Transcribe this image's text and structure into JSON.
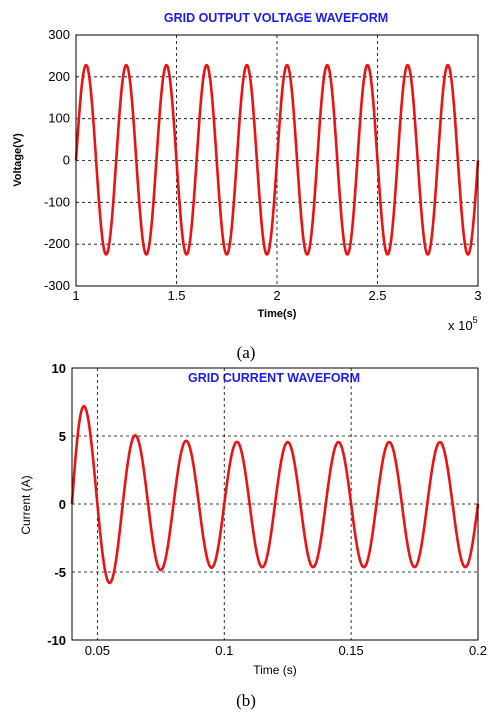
{
  "chart_data": [
    {
      "type": "line",
      "title": "GRID OUTPUT VOLTAGE WAVEFORM",
      "xlabel": "Time(s)",
      "ylabel": "Voltage(V)",
      "x_multiplier": "x 10",
      "x_multiplier_exp": "5",
      "xlim": [
        1,
        3
      ],
      "ylim": [
        -300,
        300
      ],
      "xticks": [
        "1",
        "1.5",
        "2",
        "2.5",
        "3"
      ],
      "yticks": [
        "300",
        "200",
        "100",
        "0",
        "-100",
        "-200",
        "-300"
      ],
      "grid": true,
      "caption": "(a)",
      "color": "#ee1111",
      "series": [
        {
          "x": [
            1.0,
            1.05,
            1.1,
            1.15,
            1.2,
            1.25,
            1.3,
            1.35,
            1.4,
            1.45,
            1.5,
            1.55,
            1.6,
            1.65,
            1.7,
            1.75,
            1.8,
            1.85,
            1.9,
            1.95,
            2.0,
            2.05,
            2.1,
            2.15,
            2.2,
            2.25,
            2.3,
            2.35,
            2.4,
            2.45,
            2.5,
            2.55,
            2.6,
            2.65,
            2.7,
            2.75,
            2.8,
            2.85,
            2.9,
            2.95,
            3.0
          ],
          "y": [
            0,
            230,
            0,
            -225,
            0,
            230,
            0,
            -225,
            0,
            230,
            0,
            -225,
            0,
            230,
            0,
            -225,
            0,
            230,
            0,
            -225,
            0,
            230,
            0,
            -225,
            0,
            230,
            0,
            -225,
            0,
            230,
            0,
            -225,
            0,
            230,
            0,
            -225,
            0,
            230,
            0,
            -225,
            40
          ],
          "shape": "sine",
          "amplitude": 228,
          "period": 0.2,
          "cycles": 10
        }
      ]
    },
    {
      "type": "line",
      "title": "GRID CURRENT WAVEFORM",
      "xlabel": "Time (s)",
      "ylabel": "Current (A)",
      "xlim": [
        0.04,
        0.2
      ],
      "ylim": [
        -10,
        10
      ],
      "xticks": [
        "0.05",
        "0.1",
        "0.15",
        "0.2"
      ],
      "yticks": [
        "10",
        "5",
        "0",
        "-5",
        "-10"
      ],
      "grid": true,
      "caption": "(b)",
      "color": "#ee1111",
      "series": [
        {
          "x": [
            0.04,
            0.045,
            0.05,
            0.055,
            0.06,
            0.065,
            0.07,
            0.075,
            0.08,
            0.085,
            0.09,
            0.095,
            0.1,
            0.105,
            0.11,
            0.115,
            0.12,
            0.125,
            0.13,
            0.135,
            0.14,
            0.145,
            0.15,
            0.155,
            0.16,
            0.165,
            0.17,
            0.175,
            0.18,
            0.185,
            0.19,
            0.195,
            0.2
          ],
          "y": [
            0,
            8.5,
            0,
            -6.5,
            0,
            5.2,
            0,
            -4.7,
            0,
            4.5,
            0,
            -4.6,
            0,
            4.5,
            0,
            -4.6,
            0,
            4.5,
            0,
            -4.6,
            0,
            4.5,
            0,
            -4.6,
            0,
            4.5,
            0,
            -4.6,
            0,
            4.5,
            0,
            -4.6,
            0.8
          ],
          "shape": "decaying_sine",
          "amplitude_steady": 4.55,
          "amplitude_initial": 8.5,
          "period": 0.02
        }
      ]
    }
  ]
}
